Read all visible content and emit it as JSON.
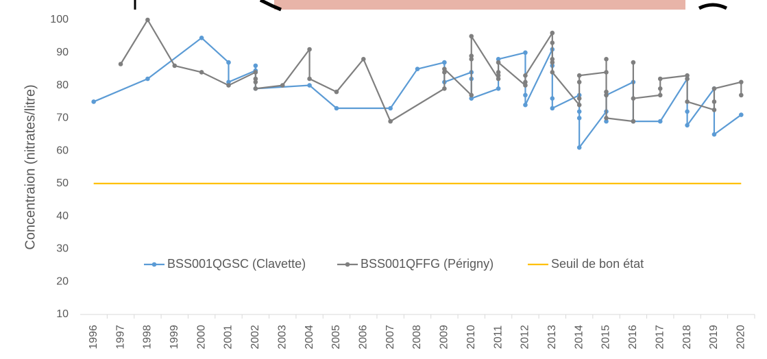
{
  "chart_data": {
    "type": "line",
    "y_label": "Concentraion (nitrates/litre)",
    "xlim": [
      1995.5,
      2020.5
    ],
    "xticks": [
      1996,
      1997,
      1998,
      1999,
      2000,
      2001,
      2002,
      2003,
      2004,
      2005,
      2006,
      2007,
      2008,
      2009,
      2010,
      2011,
      2012,
      2013,
      2014,
      2015,
      2016,
      2017,
      2018,
      2019,
      2020
    ],
    "ylim": [
      10,
      100
    ],
    "yticks": [
      10,
      20,
      30,
      40,
      50,
      60,
      70,
      80,
      90,
      100
    ],
    "grid": false,
    "legend": "bottom",
    "series": [
      {
        "name": "BSS001QGSC (Clavette)",
        "color": "#5b9bd5",
        "markers": true,
        "x": [
          1996,
          1998,
          2000,
          2001,
          2001,
          2002,
          2002,
          2002,
          2004,
          2005,
          2007,
          2008,
          2009,
          2009,
          2010,
          2010,
          2010,
          2011,
          2011,
          2012,
          2012,
          2012,
          2013,
          2013,
          2013,
          2013,
          2014,
          2014,
          2014,
          2014,
          2015,
          2015,
          2015,
          2016,
          2016,
          2017,
          2018,
          2018,
          2018,
          2019,
          2019,
          2020
        ],
        "values": [
          75,
          82,
          94.5,
          87,
          81,
          84.5,
          86,
          79,
          80,
          73,
          73,
          85,
          87,
          81,
          84,
          82,
          76,
          79,
          88,
          90,
          77,
          74,
          91,
          86,
          76,
          73,
          77,
          72,
          70,
          61,
          72,
          69,
          77,
          81,
          69,
          69,
          82,
          72,
          67.8,
          79,
          65,
          71
        ]
      },
      {
        "name": "BSS001QFFG (Périgny)",
        "color": "#7f7f7f",
        "markers": true,
        "x": [
          1997,
          1998,
          1999,
          2000,
          2001,
          2002,
          2002,
          2002,
          2002,
          2003,
          2004,
          2004,
          2005,
          2006,
          2007,
          2009,
          2009,
          2009,
          2010,
          2010,
          2010,
          2010,
          2011,
          2011,
          2011,
          2011,
          2012,
          2012,
          2012,
          2013,
          2013,
          2013,
          2013,
          2013,
          2014,
          2014,
          2014,
          2014,
          2015,
          2015,
          2015,
          2015,
          2015,
          2016,
          2016,
          2016,
          2017,
          2017,
          2017,
          2018,
          2018,
          2018,
          2019,
          2019,
          2019,
          2020,
          2020
        ],
        "values": [
          86.5,
          100,
          86,
          84,
          80,
          84,
          82,
          81,
          79,
          80,
          91,
          82,
          78,
          88,
          69,
          79,
          84,
          85,
          77,
          88,
          89,
          95,
          82,
          83,
          84,
          87,
          80,
          81,
          83,
          96,
          93,
          88,
          87,
          84,
          74,
          76,
          81,
          83,
          84,
          88,
          78,
          77,
          70,
          69,
          87,
          76,
          77,
          79,
          82,
          83,
          82,
          75,
          72.5,
          75,
          79,
          81,
          77
        ]
      },
      {
        "name": "Seuil de bon état",
        "color": "#ffc000",
        "markers": false,
        "x": [
          1996,
          2020
        ],
        "values": [
          50,
          50
        ]
      }
    ]
  }
}
